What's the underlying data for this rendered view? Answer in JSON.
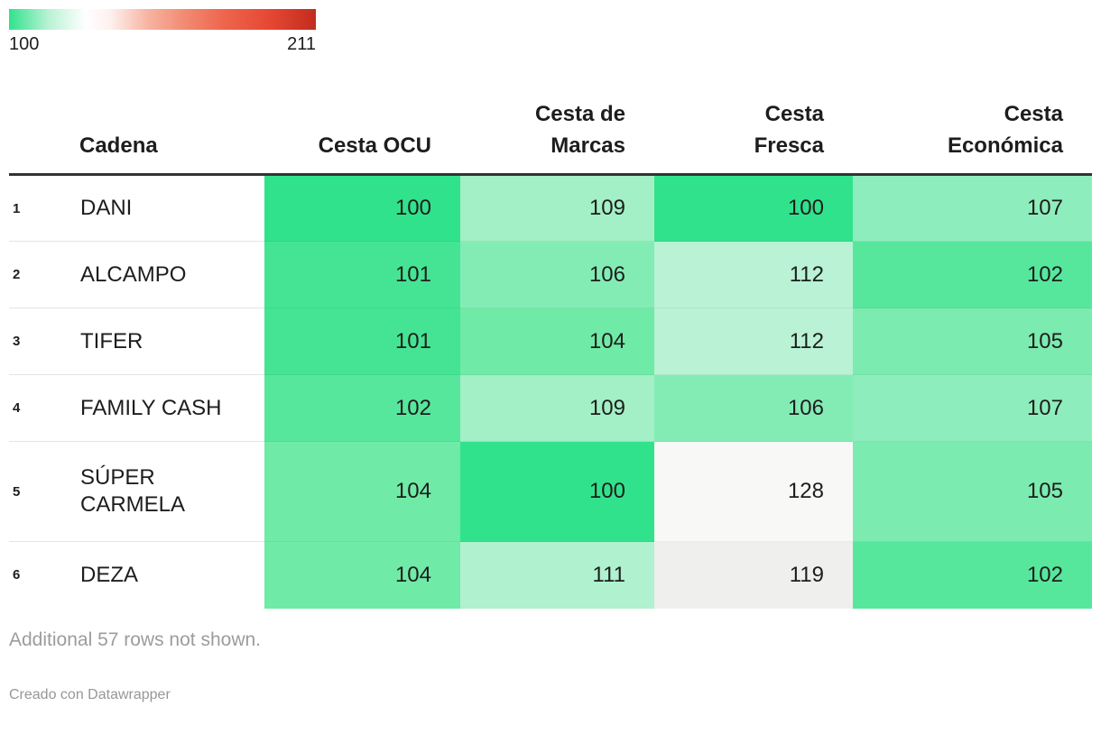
{
  "legend": {
    "min_label": "100",
    "max_label": "211",
    "gradient_stops": [
      "#31e28d 0%",
      "#baf2d5 13%",
      "#ffffff 25%",
      "#fdf1ee 33%",
      "#f7b5a4 45%",
      "#f28b73 57%",
      "#ed664c 70%",
      "#e64733 85%",
      "#c22c1e 100%"
    ]
  },
  "chart_data": {
    "type": "table",
    "columns": [
      "Cadena",
      "Cesta OCU",
      "Cesta de Marcas",
      "Cesta Fresca",
      "Cesta Económica"
    ],
    "header_labels": {
      "cadena": "Cadena",
      "ocu": "Cesta OCU",
      "marcas": "Cesta de\nMarcas",
      "fresca": "Cesta\nFresca",
      "economica": "Cesta\nEconómica"
    },
    "heatmap_range": [
      100,
      211
    ],
    "rows": [
      {
        "rank": "1",
        "name": "DANI",
        "ocu": 100,
        "marcas": 109,
        "fresca": 100,
        "economica": 107
      },
      {
        "rank": "2",
        "name": "ALCAMPO",
        "ocu": 101,
        "marcas": 106,
        "fresca": 112,
        "economica": 102
      },
      {
        "rank": "3",
        "name": "TIFER",
        "ocu": 101,
        "marcas": 104,
        "fresca": 112,
        "economica": 105
      },
      {
        "rank": "4",
        "name": "FAMILY CASH",
        "ocu": 102,
        "marcas": 109,
        "fresca": 106,
        "economica": 107
      },
      {
        "rank": "5",
        "name": "SÚPER\nCARMELA",
        "ocu": 104,
        "marcas": 100,
        "fresca": 128,
        "economica": 105
      },
      {
        "rank": "6",
        "name": "DEZA",
        "ocu": 104,
        "marcas": 111,
        "fresca": 119,
        "economica": 102
      }
    ]
  },
  "value_colors": {
    "100": "#31e28d",
    "101": "#44e494",
    "102": "#56e79c",
    "104": "#6feaa7",
    "105": "#7bebaf",
    "106": "#83ecb5",
    "107": "#8eedbc",
    "109": "#a3efc6",
    "111": "#b0f1cf",
    "112": "#b9f2d4",
    "119": "#efefed",
    "128": "#f8f8f7"
  },
  "footer": {
    "note": "Additional 57 rows not shown.",
    "credit": "Creado con Datawrapper"
  },
  "colors": {
    "accent_green": "#31e28d",
    "accent_red": "#c22c1e",
    "header_border": "#333333",
    "row_divider": "#e4e4e4",
    "text": "#1d1d1d",
    "muted": "#9c9c9c"
  }
}
